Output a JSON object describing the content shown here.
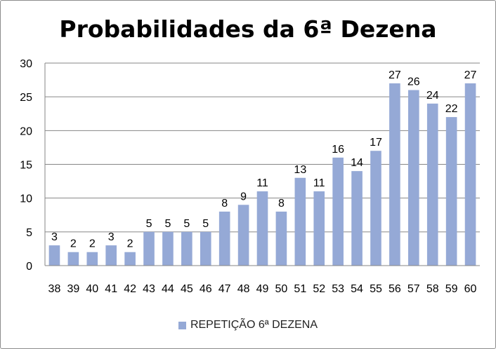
{
  "chart_data": {
    "type": "bar",
    "title": "Probabilidades da 6ª Dezena",
    "xlabel": "",
    "ylabel": "",
    "ylim": [
      0,
      30
    ],
    "yticks": [
      0,
      5,
      10,
      15,
      20,
      25,
      30
    ],
    "grid": true,
    "legend_position": "bottom",
    "categories": [
      "38",
      "39",
      "40",
      "41",
      "42",
      "43",
      "44",
      "45",
      "46",
      "47",
      "48",
      "49",
      "50",
      "51",
      "52",
      "53",
      "54",
      "55",
      "56",
      "57",
      "58",
      "59",
      "60"
    ],
    "series": [
      {
        "name": "REPETIÇÃO 6ª DEZENA",
        "color": "#95a9d6",
        "values": [
          3,
          2,
          2,
          3,
          2,
          5,
          5,
          5,
          5,
          8,
          9,
          11,
          8,
          13,
          11,
          16,
          14,
          17,
          27,
          26,
          24,
          22,
          27
        ]
      }
    ]
  }
}
